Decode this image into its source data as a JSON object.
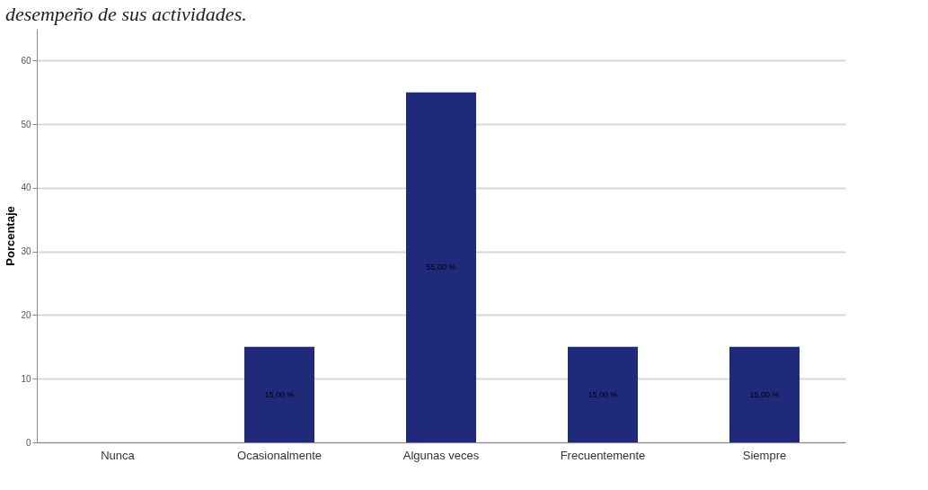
{
  "chart_data": {
    "type": "bar",
    "title": "desempeño de sus actividades.",
    "ylabel": "Porcentaje",
    "categories": [
      "Nunca",
      "Ocasionalmente",
      "Algunas veces",
      "Frecuentemente",
      "Siempre"
    ],
    "values": [
      0,
      15,
      55,
      15,
      15
    ],
    "value_labels": [
      null,
      "15,00 %",
      "55,00 %",
      "15,00 %",
      "15,00 %"
    ],
    "color": "#1f2a7a",
    "ylim": [
      0,
      65
    ],
    "yticks": [
      0,
      10,
      20,
      30,
      40,
      50,
      60
    ],
    "grid": "y"
  }
}
